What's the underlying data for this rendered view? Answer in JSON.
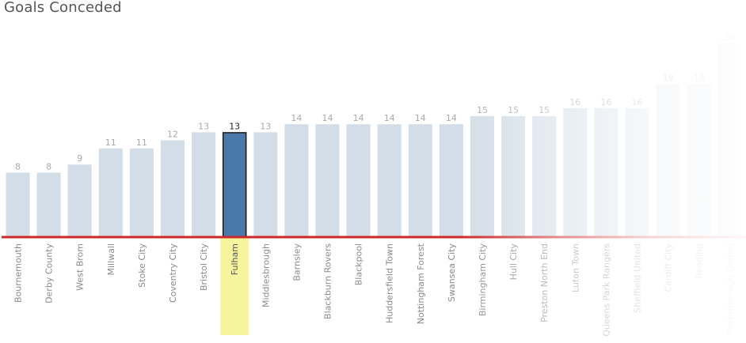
{
  "title": "Goals Conceded",
  "chart_data": {
    "type": "bar",
    "title": "Goals Conceded",
    "xlabel": "",
    "ylabel": "",
    "categories": [
      "Bournemouth",
      "Derby County",
      "West Brom",
      "Millwall",
      "Stoke City",
      "Coventry City",
      "Bristol City",
      "Fulham",
      "Middlesbrough",
      "Barnsley",
      "Blackburn Rovers",
      "Blackpool",
      "Huddersfield Town",
      "Nottingham Forest",
      "Swansea City",
      "Birmingham City",
      "Hull City",
      "Preston North End",
      "Luton Town",
      "Queens Park Rangers",
      "Sheffield United",
      "Cardiff City",
      "Reading",
      "Peterborough United"
    ],
    "values": [
      8,
      8,
      9,
      11,
      11,
      12,
      13,
      13,
      13,
      14,
      14,
      14,
      14,
      14,
      14,
      15,
      15,
      15,
      16,
      16,
      16,
      19,
      19,
      24
    ],
    "highlight": "Fulham",
    "ylim": [
      0,
      24
    ],
    "grid": false,
    "colors": {
      "bar": "#d3dde7",
      "highlight_bar": "#4a78a8",
      "highlight_border": "#1a1a1a",
      "highlight_label_bg": "#f5f59e",
      "baseline": "#cc2a2a",
      "label": "#8a8a8a",
      "value_label": "#a9a9a9",
      "highlight_value_label": "#222222"
    }
  }
}
